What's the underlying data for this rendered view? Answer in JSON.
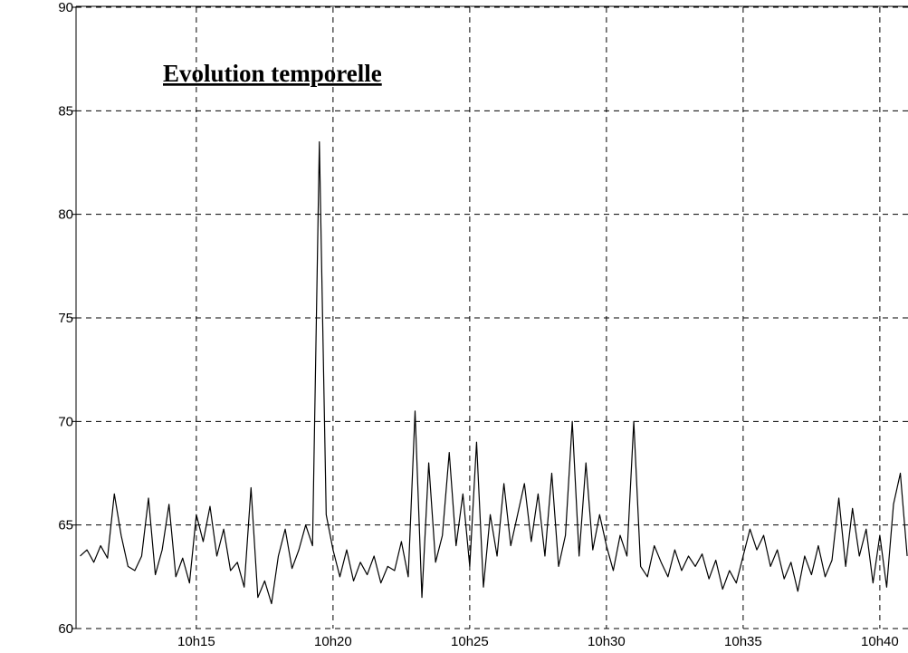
{
  "chart_data": {
    "type": "line",
    "title": "Evolution temporelle",
    "x": [
      610.75,
      611,
      611.25,
      611.5,
      611.75,
      612,
      612.25,
      612.5,
      612.75,
      613,
      613.25,
      613.5,
      613.75,
      614,
      614.25,
      614.5,
      614.75,
      615,
      615.25,
      615.5,
      615.75,
      616,
      616.25,
      616.5,
      616.75,
      617,
      617.25,
      617.5,
      617.75,
      618,
      618.25,
      618.5,
      618.75,
      619,
      619.25,
      619.5,
      619.75,
      620,
      620.25,
      620.5,
      620.75,
      621,
      621.25,
      621.5,
      621.75,
      622,
      622.25,
      622.5,
      622.75,
      623,
      623.25,
      623.5,
      623.75,
      624,
      624.25,
      624.5,
      624.75,
      625,
      625.25,
      625.5,
      625.75,
      626,
      626.25,
      626.5,
      626.75,
      627,
      627.25,
      627.5,
      627.75,
      628,
      628.25,
      628.5,
      628.75,
      629,
      629.25,
      629.5,
      629.75,
      630,
      630.25,
      630.5,
      630.75,
      631,
      631.25,
      631.5,
      631.75,
      632,
      632.25,
      632.5,
      632.75,
      633,
      633.25,
      633.5,
      633.75,
      634,
      634.25,
      634.5,
      634.75,
      635,
      635.25,
      635.5,
      635.75,
      636,
      636.25,
      636.5,
      636.75,
      637,
      637.25,
      637.5,
      637.75,
      638,
      638.25,
      638.5,
      638.75,
      639,
      639.25,
      639.5,
      639.75,
      640,
      640.25,
      640.5,
      640.75,
      641
    ],
    "series": [
      {
        "color": "#000000",
        "values": [
          63.5,
          63.8,
          63.2,
          64.0,
          63.4,
          66.5,
          64.5,
          63.0,
          62.8,
          63.5,
          66.3,
          62.6,
          63.8,
          66.0,
          62.5,
          63.4,
          62.2,
          65.5,
          64.2,
          65.9,
          63.5,
          64.8,
          62.8,
          63.2,
          62.0,
          66.8,
          61.5,
          62.3,
          61.2,
          63.5,
          64.8,
          62.9,
          63.8,
          65.0,
          64.0,
          83.5,
          65.5,
          63.8,
          62.5,
          63.8,
          62.3,
          63.2,
          62.6,
          63.5,
          62.2,
          63.0,
          62.8,
          64.2,
          62.5,
          70.5,
          61.5,
          68.0,
          63.2,
          64.5,
          68.5,
          64.0,
          66.5,
          63.0,
          69.0,
          62.0,
          65.5,
          63.5,
          67.0,
          64.0,
          65.5,
          67.0,
          64.2,
          66.5,
          63.5,
          67.5,
          63.0,
          64.5,
          70.0,
          63.5,
          68.0,
          63.8,
          65.5,
          64.0,
          62.8,
          64.5,
          63.5,
          70.0,
          63.0,
          62.5,
          64.0,
          63.2,
          62.5,
          63.8,
          62.8,
          63.5,
          63.0,
          63.6,
          62.4,
          63.3,
          61.9,
          62.8,
          62.2,
          63.5,
          64.8,
          63.8,
          64.5,
          63.0,
          63.8,
          62.4,
          63.2,
          61.8,
          63.5,
          62.6,
          64.0,
          62.5,
          63.3,
          66.3,
          63.0,
          65.8,
          63.5,
          64.8,
          62.2,
          64.5,
          62.0,
          66.0,
          67.5,
          63.5
        ]
      }
    ],
    "xlim": [
      610.6,
      641.03
    ],
    "xticks": [
      {
        "value": 615,
        "label": "10h15"
      },
      {
        "value": 620,
        "label": "10h20"
      },
      {
        "value": 625,
        "label": "10h25"
      },
      {
        "value": 630,
        "label": "10h30"
      },
      {
        "value": 635,
        "label": "10h35"
      },
      {
        "value": 640,
        "label": "10h40"
      }
    ],
    "ylim": [
      60,
      90
    ],
    "yticks": [
      60,
      65,
      70,
      75,
      80,
      85,
      90
    ],
    "grid": true
  }
}
